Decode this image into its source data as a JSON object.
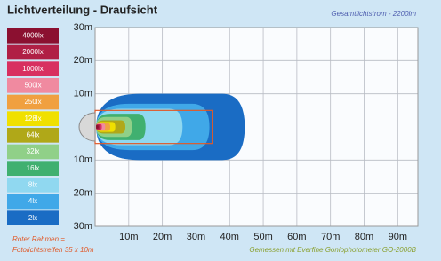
{
  "chart_data": {
    "type": "isolux",
    "title": "Lichtverteilung - Draufsicht",
    "subtitle": "Gesamtlichtstrom - 2200lm",
    "footer": "Gemessen mit Everfine Goniophotometer GO-2000B",
    "annotation": [
      "Roter Rahmen =",
      "Fotolichtstreifen 35 x 10m"
    ],
    "frame": {
      "values": [
        35,
        10
      ],
      "color": "#e05a2a"
    },
    "xlim": [
      0,
      96
    ],
    "ylim": [
      -30,
      30
    ],
    "xticks": [
      {
        "value": 10,
        "label": "10m"
      },
      {
        "value": 20,
        "label": "20m"
      },
      {
        "value": 30,
        "label": "30m"
      },
      {
        "value": 40,
        "label": "40m"
      },
      {
        "value": 50,
        "label": "50m"
      },
      {
        "value": 60,
        "label": "60m"
      },
      {
        "value": 70,
        "label": "70m"
      },
      {
        "value": 80,
        "label": "80m"
      },
      {
        "value": 90,
        "label": "90m"
      }
    ],
    "yticks": [
      {
        "value": 30,
        "label": "30m"
      },
      {
        "value": 20,
        "label": "20m"
      },
      {
        "value": 10,
        "label": "10m"
      },
      {
        "value": -10,
        "label": "10m"
      },
      {
        "value": -20,
        "label": "20m"
      },
      {
        "value": -30,
        "label": "30m"
      }
    ],
    "grid": true,
    "series": [
      {
        "name": "4000lx",
        "color": "#8b1030",
        "values": [
          1,
          0.5
        ]
      },
      {
        "name": "2000lx",
        "color": "#b01f45",
        "values": [
          1.5,
          0.7
        ]
      },
      {
        "name": "1000lx",
        "color": "#d83060",
        "values": [
          2,
          0.8
        ]
      },
      {
        "name": "500lx",
        "color": "#f08aa0",
        "values": [
          3,
          1
        ]
      },
      {
        "name": "250lx",
        "color": "#f0a040",
        "values": [
          4.5,
          1.2
        ]
      },
      {
        "name": "128lx",
        "color": "#f0e000",
        "values": [
          6,
          1.5
        ]
      },
      {
        "name": "64lx",
        "color": "#b0a818",
        "values": [
          9,
          2
        ]
      },
      {
        "name": "32lx",
        "color": "#90d088",
        "values": [
          11,
          3
        ]
      },
      {
        "name": "16lx",
        "color": "#40b070",
        "values": [
          15,
          4
        ]
      },
      {
        "name": "8lx",
        "color": "#90d8f0",
        "values": [
          26,
          5.5
        ]
      },
      {
        "name": "4lx",
        "color": "#40a8e8",
        "values": [
          34,
          7
        ]
      },
      {
        "name": "2lx",
        "color": "#1a6cc4",
        "values": [
          44.5,
          10
        ]
      }
    ]
  }
}
